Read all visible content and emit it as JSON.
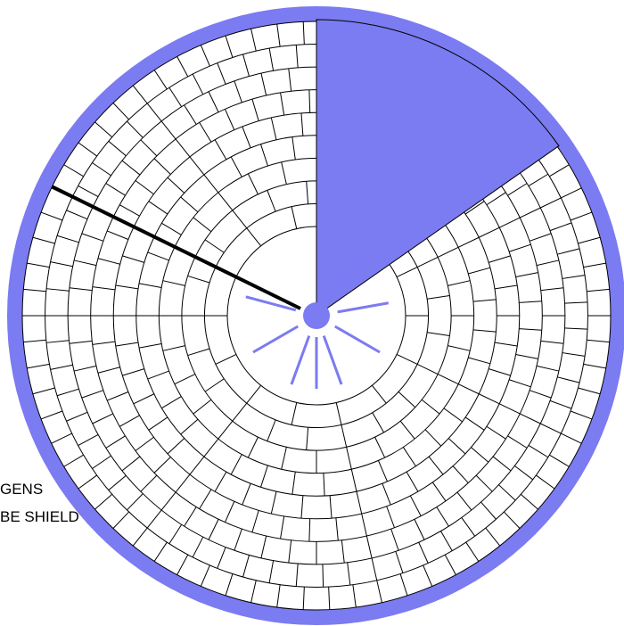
{
  "diagram": {
    "ring_count": 9,
    "inner_cells": 14,
    "cell_increment": 7,
    "removed_sector_deg": [
      -90,
      -35
    ],
    "pointer_angle_deg": -154,
    "burst_angles_deg": [
      -50,
      -10,
      30,
      70,
      90,
      110,
      150,
      195
    ],
    "colors": {
      "rim": "#7b7bf2",
      "sector": "#7b7bf2",
      "hub": "#7b7bf2",
      "burst": "#7b7bf2",
      "grid": "#000000",
      "pointer": "#000000"
    }
  },
  "labels": {
    "line1": "GENS",
    "line2": "BE SHIELD"
  }
}
